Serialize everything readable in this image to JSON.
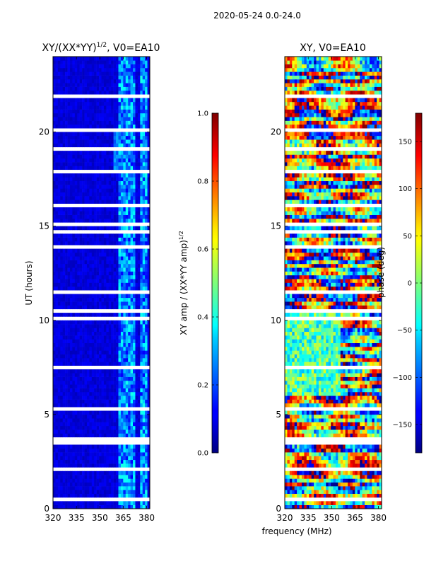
{
  "figure": {
    "suptitle": "2020-05-24 0.0-24.0",
    "xlabel": "frequency (MHz)"
  },
  "chart_data": [
    {
      "type": "heatmap",
      "title_main": "XY/(XX*YY)",
      "title_sup": "1/2",
      "title_tail": ", V0=EA10",
      "ylabel": "UT (hours)",
      "xlim": [
        320,
        382
      ],
      "ylim": [
        0,
        24
      ],
      "xticks": [
        320,
        335,
        350,
        365,
        380
      ],
      "yticks": [
        0,
        5,
        10,
        15,
        20
      ],
      "colormap": "jet",
      "colorbar": {
        "label_main": "XY amp / (XX*YY amp)",
        "label_sup": "1/2",
        "range": [
          0.0,
          1.0
        ],
        "ticks": [
          0.0,
          0.2,
          0.4,
          0.6,
          0.8,
          1.0
        ],
        "tick_labels": [
          "0.0",
          "0.2",
          "0.4",
          "0.6",
          "0.8",
          "1.0"
        ]
      },
      "description": "amplitude ratio mostly low (0.0-0.2) with brighter channels near 363-372 MHz and 376-381 MHz"
    },
    {
      "type": "heatmap",
      "title_main": "XY, V0=EA10",
      "xlim": [
        320,
        382
      ],
      "ylim": [
        0,
        24
      ],
      "xticks": [
        320,
        335,
        350,
        365,
        380
      ],
      "yticks": [
        0,
        5,
        10,
        15,
        20
      ],
      "colormap": "jet",
      "colorbar": {
        "label_main": "phase (deg)",
        "range": [
          -180,
          180
        ],
        "ticks": [
          -150,
          -100,
          -50,
          0,
          50,
          100,
          150
        ],
        "tick_labels": [
          "−150",
          "−100",
          "−50",
          "0",
          "50",
          "100",
          "150"
        ]
      },
      "description": "phase varies widely across the band in horizontal bands"
    }
  ]
}
